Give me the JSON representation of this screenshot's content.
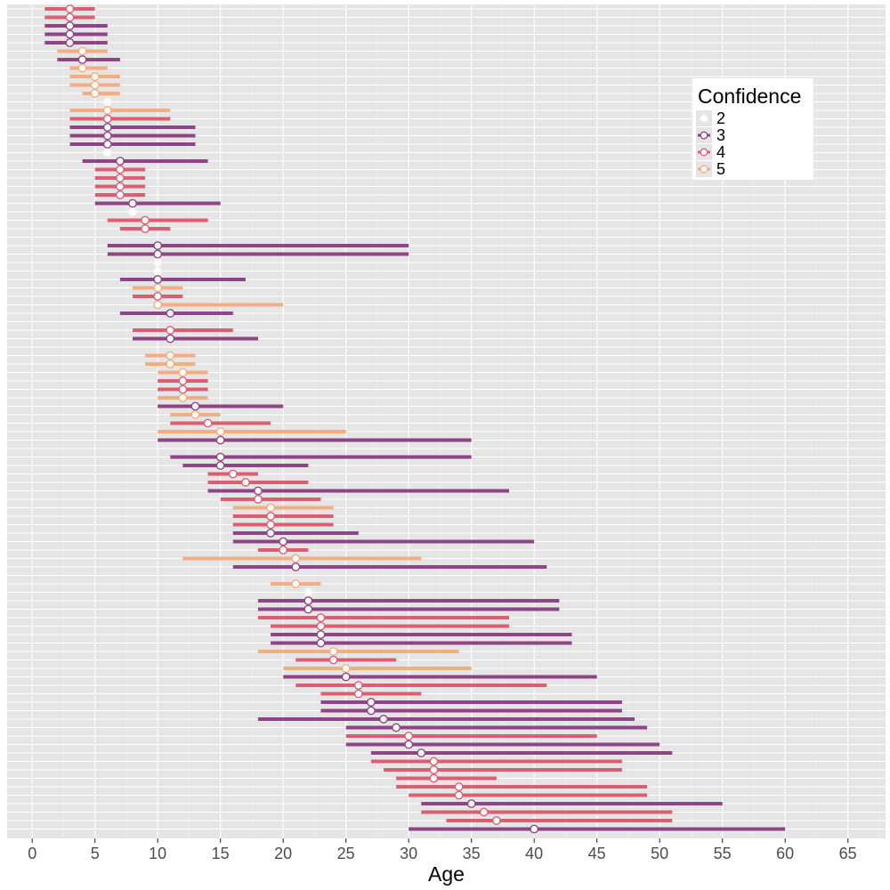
{
  "chart_data": {
    "type": "range-dot",
    "xlabel": "Age",
    "xlim": [
      -2,
      68
    ],
    "x_ticks": [
      0,
      5,
      10,
      15,
      20,
      25,
      30,
      35,
      40,
      45,
      50,
      55,
      60,
      65
    ],
    "x_tick_labels": [
      "0",
      "5",
      "10",
      "15",
      "20",
      "25",
      "30",
      "35",
      "40",
      "45",
      "50",
      "55",
      "60",
      "65"
    ],
    "grid": true,
    "legend": {
      "title": "Confidence",
      "placement": "top-right",
      "entries": [
        {
          "label": "2",
          "level": 2
        },
        {
          "label": "3",
          "level": 3
        },
        {
          "label": "4",
          "level": 4
        },
        {
          "label": "5",
          "level": 5
        }
      ]
    },
    "colors": {
      "2": "#ebebeb",
      "3": "#8e4585",
      "4": "#dd5e72",
      "5": "#f3ad82"
    },
    "rows": [
      {
        "lo": 1,
        "hi": 5,
        "pt": 3,
        "c": 4
      },
      {
        "lo": 1,
        "hi": 5,
        "pt": 3,
        "c": 4
      },
      {
        "lo": 1,
        "hi": 6,
        "pt": 3,
        "c": 3
      },
      {
        "lo": 1,
        "hi": 6,
        "pt": 3,
        "c": 3
      },
      {
        "lo": 1,
        "hi": 6,
        "pt": 3,
        "c": 3
      },
      {
        "lo": 2,
        "hi": 6,
        "pt": 4,
        "c": 5
      },
      {
        "lo": 2,
        "hi": 7,
        "pt": 4,
        "c": 3
      },
      {
        "lo": 3,
        "hi": 6,
        "pt": 4,
        "c": 5
      },
      {
        "lo": 3,
        "hi": 7,
        "pt": 5,
        "c": 5
      },
      {
        "lo": 3,
        "hi": 7,
        "pt": 5,
        "c": 5
      },
      {
        "lo": 4,
        "hi": 7,
        "pt": 5,
        "c": 5
      },
      {
        "lo": 6,
        "hi": 6,
        "pt": 6,
        "c": 2
      },
      {
        "lo": 3,
        "hi": 11,
        "pt": 6,
        "c": 5
      },
      {
        "lo": 3,
        "hi": 11,
        "pt": 6,
        "c": 4
      },
      {
        "lo": 3,
        "hi": 13,
        "pt": 6,
        "c": 3
      },
      {
        "lo": 3,
        "hi": 13,
        "pt": 6,
        "c": 3
      },
      {
        "lo": 3,
        "hi": 13,
        "pt": 6,
        "c": 3
      },
      {
        "lo": 6,
        "hi": 6,
        "pt": 6,
        "c": 2
      },
      {
        "lo": 4,
        "hi": 14,
        "pt": 7,
        "c": 3
      },
      {
        "lo": 5,
        "hi": 9,
        "pt": 7,
        "c": 4
      },
      {
        "lo": 5,
        "hi": 9,
        "pt": 7,
        "c": 4
      },
      {
        "lo": 5,
        "hi": 9,
        "pt": 7,
        "c": 4
      },
      {
        "lo": 5,
        "hi": 9,
        "pt": 7,
        "c": 4
      },
      {
        "lo": 5,
        "hi": 15,
        "pt": 8,
        "c": 3
      },
      {
        "lo": 8,
        "hi": 8,
        "pt": 8,
        "c": 2
      },
      {
        "lo": 6,
        "hi": 14,
        "pt": 9,
        "c": 4
      },
      {
        "lo": 7,
        "hi": 11,
        "pt": 9,
        "c": 4
      },
      {
        "lo": null,
        "hi": null,
        "pt": null,
        "c": 0
      },
      {
        "lo": 6,
        "hi": 30,
        "pt": 10,
        "c": 3
      },
      {
        "lo": 6,
        "hi": 30,
        "pt": 10,
        "c": 3
      },
      {
        "lo": 10,
        "hi": 10,
        "pt": 10,
        "c": 2
      },
      {
        "lo": 10,
        "hi": 10,
        "pt": 10,
        "c": 2
      },
      {
        "lo": 7,
        "hi": 17,
        "pt": 10,
        "c": 3
      },
      {
        "lo": 8,
        "hi": 12,
        "pt": 10,
        "c": 5
      },
      {
        "lo": 8,
        "hi": 12,
        "pt": 10,
        "c": 4
      },
      {
        "lo": 10,
        "hi": 20,
        "pt": 10,
        "c": 5
      },
      {
        "lo": 7,
        "hi": 16,
        "pt": 11,
        "c": 3
      },
      {
        "lo": null,
        "hi": null,
        "pt": null,
        "c": 0
      },
      {
        "lo": 8,
        "hi": 16,
        "pt": 11,
        "c": 4
      },
      {
        "lo": 8,
        "hi": 18,
        "pt": 11,
        "c": 3
      },
      {
        "lo": null,
        "hi": null,
        "pt": null,
        "c": 0
      },
      {
        "lo": 9,
        "hi": 13,
        "pt": 11,
        "c": 5
      },
      {
        "lo": 9,
        "hi": 13,
        "pt": 11,
        "c": 5
      },
      {
        "lo": 10,
        "hi": 14,
        "pt": 12,
        "c": 5
      },
      {
        "lo": 10,
        "hi": 14,
        "pt": 12,
        "c": 4
      },
      {
        "lo": 10,
        "hi": 14,
        "pt": 12,
        "c": 4
      },
      {
        "lo": 10,
        "hi": 14,
        "pt": 12,
        "c": 5
      },
      {
        "lo": 10,
        "hi": 20,
        "pt": 13,
        "c": 3
      },
      {
        "lo": 11,
        "hi": 15,
        "pt": 13,
        "c": 5
      },
      {
        "lo": 11,
        "hi": 19,
        "pt": 14,
        "c": 4
      },
      {
        "lo": 10,
        "hi": 25,
        "pt": 15,
        "c": 5
      },
      {
        "lo": 10,
        "hi": 35,
        "pt": 15,
        "c": 3
      },
      {
        "lo": null,
        "hi": null,
        "pt": null,
        "c": 0
      },
      {
        "lo": 11,
        "hi": 35,
        "pt": 15,
        "c": 3
      },
      {
        "lo": 12,
        "hi": 22,
        "pt": 15,
        "c": 3
      },
      {
        "lo": 14,
        "hi": 18,
        "pt": 16,
        "c": 4
      },
      {
        "lo": 14,
        "hi": 22,
        "pt": 17,
        "c": 4
      },
      {
        "lo": 14,
        "hi": 38,
        "pt": 18,
        "c": 3
      },
      {
        "lo": 15,
        "hi": 23,
        "pt": 18,
        "c": 4
      },
      {
        "lo": 16,
        "hi": 24,
        "pt": 19,
        "c": 5
      },
      {
        "lo": 16,
        "hi": 24,
        "pt": 19,
        "c": 4
      },
      {
        "lo": 16,
        "hi": 24,
        "pt": 19,
        "c": 4
      },
      {
        "lo": 16,
        "hi": 26,
        "pt": 19,
        "c": 3
      },
      {
        "lo": 16,
        "hi": 40,
        "pt": 20,
        "c": 3
      },
      {
        "lo": 18,
        "hi": 22,
        "pt": 20,
        "c": 4
      },
      {
        "lo": 12,
        "hi": 31,
        "pt": 21,
        "c": 5
      },
      {
        "lo": 16,
        "hi": 41,
        "pt": 21,
        "c": 3
      },
      {
        "lo": null,
        "hi": null,
        "pt": null,
        "c": 0
      },
      {
        "lo": 19,
        "hi": 23,
        "pt": 21,
        "c": 5
      },
      {
        "lo": 22,
        "hi": 22,
        "pt": 22,
        "c": 2
      },
      {
        "lo": 18,
        "hi": 42,
        "pt": 22,
        "c": 3
      },
      {
        "lo": 18,
        "hi": 42,
        "pt": 22,
        "c": 3
      },
      {
        "lo": 18,
        "hi": 38,
        "pt": 23,
        "c": 4
      },
      {
        "lo": 19,
        "hi": 38,
        "pt": 23,
        "c": 4
      },
      {
        "lo": 19,
        "hi": 43,
        "pt": 23,
        "c": 3
      },
      {
        "lo": 19,
        "hi": 43,
        "pt": 23,
        "c": 3
      },
      {
        "lo": 18,
        "hi": 34,
        "pt": 24,
        "c": 5
      },
      {
        "lo": 21,
        "hi": 29,
        "pt": 24,
        "c": 4
      },
      {
        "lo": 20,
        "hi": 35,
        "pt": 25,
        "c": 5
      },
      {
        "lo": 20,
        "hi": 45,
        "pt": 25,
        "c": 3
      },
      {
        "lo": 21,
        "hi": 41,
        "pt": 26,
        "c": 4
      },
      {
        "lo": 23,
        "hi": 31,
        "pt": 26,
        "c": 4
      },
      {
        "lo": 23,
        "hi": 47,
        "pt": 27,
        "c": 3
      },
      {
        "lo": 23,
        "hi": 47,
        "pt": 27,
        "c": 3
      },
      {
        "lo": 18,
        "hi": 48,
        "pt": 28,
        "c": 3
      },
      {
        "lo": 25,
        "hi": 49,
        "pt": 29,
        "c": 3
      },
      {
        "lo": 25,
        "hi": 45,
        "pt": 30,
        "c": 4
      },
      {
        "lo": 25,
        "hi": 50,
        "pt": 30,
        "c": 3
      },
      {
        "lo": 27,
        "hi": 51,
        "pt": 31,
        "c": 3
      },
      {
        "lo": 27,
        "hi": 47,
        "pt": 32,
        "c": 4
      },
      {
        "lo": 28,
        "hi": 47,
        "pt": 32,
        "c": 4
      },
      {
        "lo": 29,
        "hi": 37,
        "pt": 32,
        "c": 4
      },
      {
        "lo": 29,
        "hi": 49,
        "pt": 34,
        "c": 4
      },
      {
        "lo": 30,
        "hi": 49,
        "pt": 34,
        "c": 4
      },
      {
        "lo": 31,
        "hi": 55,
        "pt": 35,
        "c": 3
      },
      {
        "lo": 31,
        "hi": 51,
        "pt": 36,
        "c": 4
      },
      {
        "lo": 33,
        "hi": 51,
        "pt": 37,
        "c": 4
      },
      {
        "lo": 30,
        "hi": 60,
        "pt": 40,
        "c": 3
      }
    ]
  }
}
